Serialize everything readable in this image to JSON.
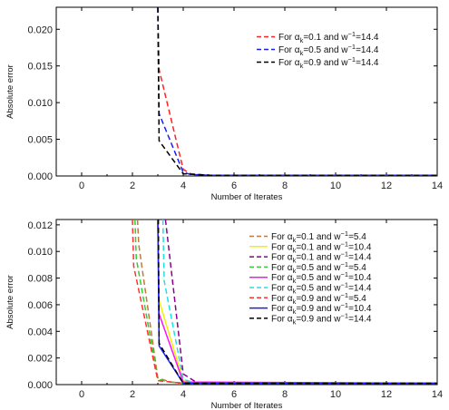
{
  "chart_data": [
    {
      "type": "line",
      "xlabel": "Number of Iterates",
      "ylabel": "Absolute error",
      "xlim": [
        -1,
        14
      ],
      "ylim": [
        0,
        0.023
      ],
      "x_ticks": [
        "0",
        "2",
        "4",
        "6",
        "8",
        "10",
        "12",
        "14"
      ],
      "y_ticks": [
        "0.000",
        "0.005",
        "0.010",
        "0.015",
        "0.020"
      ],
      "grid": false,
      "legend_position": "top-right",
      "series": [
        {
          "name": "For αk=0.1 and w−1=14.4",
          "color": "#ff2020",
          "dash": "dashed",
          "x": [
            3,
            3.05,
            4,
            4.3,
            5,
            14
          ],
          "y": [
            0.023,
            0.0145,
            0.0009,
            0.0003,
            0.0001,
            0.0001
          ]
        },
        {
          "name": "For αk=0.5 and w−1=14.4",
          "color": "#1a1aff",
          "dash": "dashed",
          "x": [
            3,
            3.05,
            4,
            4.3,
            5,
            14
          ],
          "y": [
            0.023,
            0.0085,
            0.0005,
            0.0002,
            0.0001,
            0.0001
          ]
        },
        {
          "name": "For αk=0.9 and w−1=14.4",
          "color": "#000000",
          "dash": "dashed",
          "x": [
            3,
            3.05,
            4,
            5,
            14
          ],
          "y": [
            0.023,
            0.0048,
            0.0003,
            0.0001,
            0.0001
          ]
        }
      ]
    },
    {
      "type": "line",
      "xlabel": "Number of Iterates",
      "ylabel": "Absolute error",
      "xlim": [
        -1,
        14
      ],
      "ylim": [
        0,
        0.0124
      ],
      "x_ticks": [
        "0",
        "2",
        "4",
        "6",
        "8",
        "10",
        "12",
        "14"
      ],
      "y_ticks": [
        "0.000",
        "0.002",
        "0.004",
        "0.006",
        "0.008",
        "0.010",
        "0.012"
      ],
      "grid": false,
      "legend_position": "top-right",
      "series": [
        {
          "name": "For αk=0.1 and w−1=5.4",
          "color": "#c0783c",
          "dash": "dashed",
          "x": [
            2.2,
            2.25,
            3,
            3.5,
            4,
            5,
            14
          ],
          "y": [
            0.0124,
            0.0105,
            0.0005,
            0.0002,
            0.0001,
            0.0001,
            0.0001
          ]
        },
        {
          "name": "For αk=0.1 and w−1=10.4",
          "color": "#f0f000",
          "dash": "solid",
          "x": [
            3,
            3.05,
            4,
            4.5,
            14
          ],
          "y": [
            0.0124,
            0.0063,
            0.0003,
            0.0001,
            0.0001
          ]
        },
        {
          "name": "For αk=0.1 and w−1=14.4",
          "color": "#8a008a",
          "dash": "dashed",
          "x": [
            3.3,
            4,
            4.5,
            5,
            14
          ],
          "y": [
            0.0124,
            0.0008,
            0.0002,
            0.0001,
            0.0001
          ]
        },
        {
          "name": "For αk=0.5 and w−1=5.4",
          "color": "#33cc33",
          "dash": "dashed",
          "x": [
            2.1,
            2.15,
            3,
            3.5,
            4,
            14
          ],
          "y": [
            0.0124,
            0.0095,
            0.0004,
            0.0002,
            0.0001,
            0.0001
          ]
        },
        {
          "name": "For αk=0.5 and w−1=10.4",
          "color": "#ff10ff",
          "dash": "solid",
          "x": [
            3,
            3.05,
            4,
            14
          ],
          "y": [
            0.0124,
            0.0053,
            0.0002,
            0.0001
          ]
        },
        {
          "name": "For αk=0.5 and w−1=14.4",
          "color": "#20e0e0",
          "dash": "dashed",
          "x": [
            3.2,
            3.25,
            4,
            4.5,
            14
          ],
          "y": [
            0.0124,
            0.0078,
            0.0004,
            0.0001,
            0.0001
          ]
        },
        {
          "name": "For αk=0.9 and w−1=5.4",
          "color": "#ff3030",
          "dash": "dashed",
          "x": [
            2,
            2.05,
            3,
            3.5,
            4,
            14
          ],
          "y": [
            0.0124,
            0.0089,
            0.0003,
            0.0002,
            0.0001,
            0.0001
          ]
        },
        {
          "name": "For αk=0.9 and w−1=10.4",
          "color": "#1a1aff",
          "dash": "solid",
          "x": [
            3,
            3.05,
            4,
            14
          ],
          "y": [
            0.0124,
            0.0029,
            0.0001,
            0.0001
          ]
        },
        {
          "name": "For αk=0.9 and w−1=14.4",
          "color": "#000000",
          "dash": "dashed",
          "x": [
            3,
            3.02,
            3.05,
            4,
            14
          ],
          "y": [
            0.0124,
            0.0124,
            0.0031,
            0.0001,
            0.0001
          ]
        }
      ]
    }
  ]
}
